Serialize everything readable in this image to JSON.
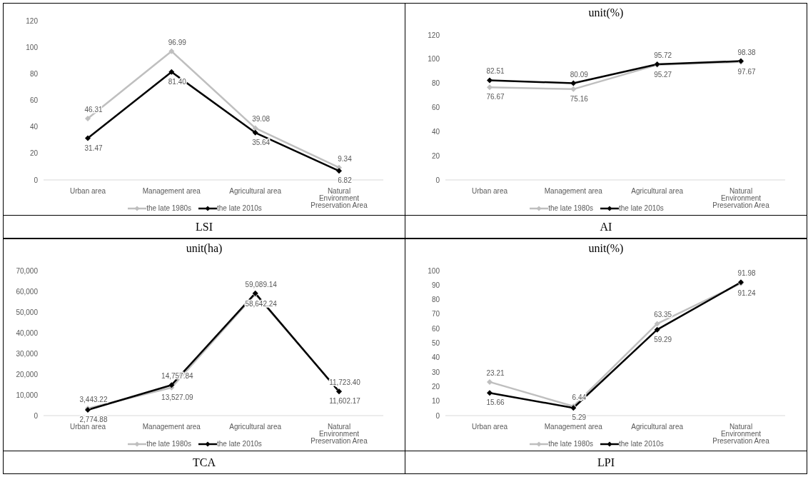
{
  "chart_data": [
    {
      "type": "line",
      "categories": [
        "Urban area",
        "Management area",
        "Agricultural area",
        "Natural Environment Preservation Area"
      ],
      "series": [
        {
          "name": "the late 1980s",
          "color": "#bfbfbf",
          "values": [
            46.31,
            96.99,
            39.08,
            9.34
          ],
          "value_labels": [
            "46.31",
            "96.99",
            "39.08",
            "9.34"
          ]
        },
        {
          "name": "the late 2010s",
          "color": "#000000",
          "values": [
            31.47,
            81.4,
            35.64,
            6.82
          ],
          "value_labels": [
            "31.47",
            "81.40",
            "35.64",
            "6.82"
          ]
        }
      ],
      "ylim": [
        0,
        120
      ],
      "yticks": [
        0,
        20,
        40,
        60,
        80,
        100,
        120
      ],
      "legend": "bottom",
      "marker": "diamond",
      "grid": false,
      "annotations": [
        "LSI"
      ]
    },
    {
      "type": "line",
      "title": "unit(%)",
      "categories": [
        "Urban area",
        "Management area",
        "Agricultural area",
        "Natural Environment Preservation Area"
      ],
      "series": [
        {
          "name": "the late 1980s",
          "color": "#bfbfbf",
          "values": [
            76.67,
            75.16,
            95.27,
            97.67
          ],
          "value_labels": [
            "76.67",
            "75.16",
            "95.27",
            "97.67"
          ]
        },
        {
          "name": "the late 2010s",
          "color": "#000000",
          "values": [
            82.51,
            80.09,
            95.72,
            98.38
          ],
          "value_labels": [
            "82.51",
            "80.09",
            "95.72",
            "98.38"
          ]
        }
      ],
      "ylim": [
        0,
        120
      ],
      "yticks": [
        0,
        20,
        40,
        60,
        80,
        100,
        120
      ],
      "legend": "bottom",
      "marker": "diamond",
      "grid": false,
      "annotations": [
        "AI"
      ]
    },
    {
      "type": "line",
      "title": "unit(ha)",
      "categories": [
        "Urban area",
        "Management area",
        "Agricultural area",
        "Natural Environment Preservation Area"
      ],
      "series": [
        {
          "name": "the late 1980s",
          "color": "#bfbfbf",
          "values": [
            3443.22,
            13527.09,
            58642.24,
            11723.4
          ],
          "value_labels": [
            "3,443.22",
            "13,527.09",
            "58,642.24",
            "11,723.40"
          ]
        },
        {
          "name": "the late 2010s",
          "color": "#000000",
          "values": [
            2774.88,
            14757.84,
            59089.14,
            11602.17
          ],
          "value_labels": [
            "2,774.88",
            "14,757.84",
            "59,089.14",
            "11,602.17"
          ]
        }
      ],
      "ylim": [
        0,
        70000
      ],
      "yticks": [
        0,
        {
          "value": 10000,
          "label": "10,000"
        },
        {
          "value": 20000,
          "label": "20,000"
        },
        {
          "value": 30000,
          "label": "30,000"
        },
        {
          "value": 40000,
          "label": "40,000"
        },
        {
          "value": 50000,
          "label": "50,000"
        },
        {
          "value": 60000,
          "label": "60,000"
        },
        {
          "value": 70000,
          "label": "70,000"
        }
      ],
      "legend": "bottom",
      "marker": "diamond",
      "grid": false,
      "annotations": [
        "TCA"
      ]
    },
    {
      "type": "line",
      "title": "unit(%)",
      "categories": [
        "Urban area",
        "Management area",
        "Agricultural area",
        "Natural Environment Preservation Area"
      ],
      "series": [
        {
          "name": "the late 1980s",
          "color": "#bfbfbf",
          "values": [
            23.21,
            6.44,
            63.35,
            91.24
          ],
          "value_labels": [
            "23.21",
            "6.44",
            "63.35",
            "91.24"
          ]
        },
        {
          "name": "the late 2010s",
          "color": "#000000",
          "values": [
            15.66,
            5.29,
            59.29,
            91.98
          ],
          "value_labels": [
            "15.66",
            "5.29",
            "59.29",
            "91.98"
          ]
        }
      ],
      "ylim": [
        0,
        100
      ],
      "yticks": [
        0,
        10,
        20,
        30,
        40,
        50,
        60,
        70,
        80,
        90,
        100
      ],
      "legend": "bottom",
      "marker": "diamond",
      "grid": false,
      "annotations": [
        "LPI"
      ]
    }
  ]
}
